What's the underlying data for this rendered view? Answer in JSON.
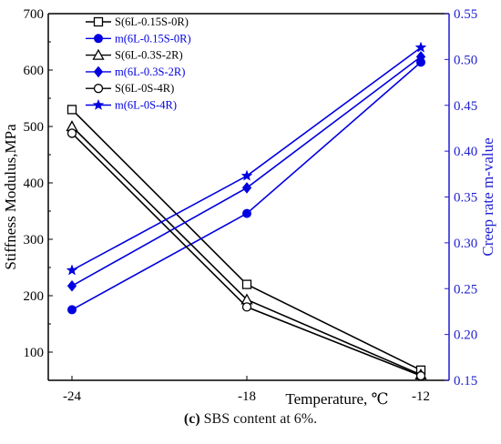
{
  "caption": {
    "label": "(c)",
    "text": "SBS content at 6%."
  },
  "colors": {
    "left_axis": "#000000",
    "right_axis": "#1f1fd0",
    "stiffness_series": "#000000",
    "m_series": "#0000e0"
  },
  "chart_data": {
    "type": "line",
    "x": [
      "-24",
      "-18",
      "-12"
    ],
    "xlabel": "Temperature, ℃",
    "ylabel": "Stiffness Modulus,MPa",
    "y2label": "Creep rate m-value",
    "ylim": [
      50,
      700
    ],
    "y2lim": [
      0.15,
      0.55
    ],
    "yticks": [
      100,
      200,
      300,
      400,
      500,
      600,
      700
    ],
    "y2ticks": [
      "0.15",
      "0.20",
      "0.25",
      "0.30",
      "0.35",
      "0.40",
      "0.45",
      "0.50",
      "0.55"
    ],
    "grid": false,
    "legend_position": "top-left",
    "series": [
      {
        "name": "S(6L-0.15S-0R)",
        "axis": "left",
        "marker": "square",
        "values": [
          530,
          220,
          68
        ]
      },
      {
        "name": "m(6L-0.15S-0R)",
        "axis": "right",
        "marker": "circle-filled",
        "values": [
          0.227,
          0.332,
          0.497
        ]
      },
      {
        "name": "S(6L-0.3S-2R)",
        "axis": "left",
        "marker": "triangle",
        "values": [
          500,
          193,
          60
        ]
      },
      {
        "name": "m(6L-0.3S-2R)",
        "axis": "right",
        "marker": "diamond-filled",
        "values": [
          0.253,
          0.36,
          0.503
        ]
      },
      {
        "name": "S(6L-0S-4R)",
        "axis": "left",
        "marker": "circle",
        "values": [
          488,
          180,
          58
        ]
      },
      {
        "name": "m(6L-0S-4R)",
        "axis": "right",
        "marker": "star",
        "values": [
          0.27,
          0.373,
          0.513
        ]
      }
    ]
  }
}
